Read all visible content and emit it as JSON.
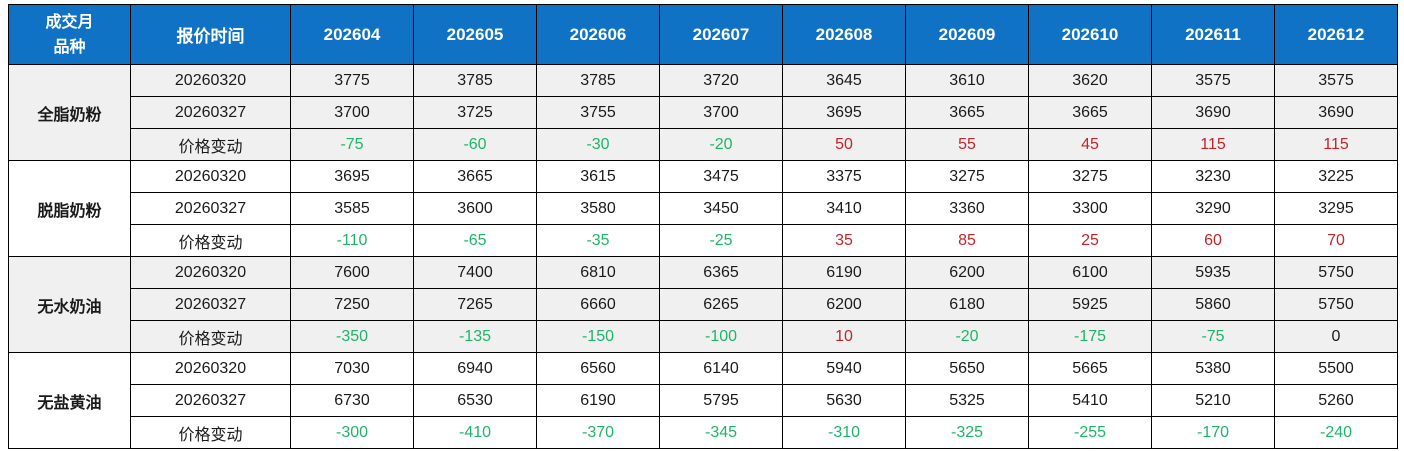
{
  "colors": {
    "header_bg": "#1072C4",
    "header_text": "#FFFFFF",
    "body_text": "#1A1A1A",
    "positive": "#C5242B",
    "negative": "#1FB568",
    "shaded_row_bg": "#F0F0F0",
    "white_row_bg": "#FFFFFF",
    "border": "#000000"
  },
  "chart_data": {
    "type": "table",
    "corner_top": "成交月",
    "corner_bottom": "品种",
    "quote_time_header": "报价时间",
    "month_headers": [
      "202604",
      "202605",
      "202606",
      "202607",
      "202608",
      "202609",
      "202610",
      "202611",
      "202612"
    ],
    "change_row_label": "价格变动",
    "products": [
      {
        "name": "全脂奶粉",
        "shaded": true,
        "rows": [
          {
            "label": "20260320",
            "change": false,
            "values": [
              3775,
              3785,
              3785,
              3720,
              3645,
              3610,
              3620,
              3575,
              3575
            ]
          },
          {
            "label": "20260327",
            "change": false,
            "values": [
              3700,
              3725,
              3755,
              3700,
              3695,
              3665,
              3665,
              3690,
              3690
            ]
          },
          {
            "label": "价格变动",
            "change": true,
            "values": [
              -75,
              -60,
              -30,
              -20,
              50,
              55,
              45,
              115,
              115
            ]
          }
        ]
      },
      {
        "name": "脱脂奶粉",
        "shaded": false,
        "rows": [
          {
            "label": "20260320",
            "change": false,
            "values": [
              3695,
              3665,
              3615,
              3475,
              3375,
              3275,
              3275,
              3230,
              3225
            ]
          },
          {
            "label": "20260327",
            "change": false,
            "values": [
              3585,
              3600,
              3580,
              3450,
              3410,
              3360,
              3300,
              3290,
              3295
            ]
          },
          {
            "label": "价格变动",
            "change": true,
            "values": [
              -110,
              -65,
              -35,
              -25,
              35,
              85,
              25,
              60,
              70
            ]
          }
        ]
      },
      {
        "name": "无水奶油",
        "shaded": true,
        "rows": [
          {
            "label": "20260320",
            "change": false,
            "values": [
              7600,
              7400,
              6810,
              6365,
              6190,
              6200,
              6100,
              5935,
              5750
            ]
          },
          {
            "label": "20260327",
            "change": false,
            "values": [
              7250,
              7265,
              6660,
              6265,
              6200,
              6180,
              5925,
              5860,
              5750
            ]
          },
          {
            "label": "价格变动",
            "change": true,
            "values": [
              -350,
              -135,
              -150,
              -100,
              10,
              -20,
              -175,
              -75,
              0
            ]
          }
        ]
      },
      {
        "name": "无盐黄油",
        "shaded": false,
        "rows": [
          {
            "label": "20260320",
            "change": false,
            "values": [
              7030,
              6940,
              6560,
              6140,
              5940,
              5650,
              5665,
              5380,
              5500
            ]
          },
          {
            "label": "20260327",
            "change": false,
            "values": [
              6730,
              6530,
              6190,
              5795,
              5630,
              5325,
              5410,
              5210,
              5260
            ]
          },
          {
            "label": "价格变动",
            "change": true,
            "values": [
              -300,
              -410,
              -370,
              -345,
              -310,
              -325,
              -255,
              -170,
              -240
            ]
          }
        ]
      }
    ]
  }
}
